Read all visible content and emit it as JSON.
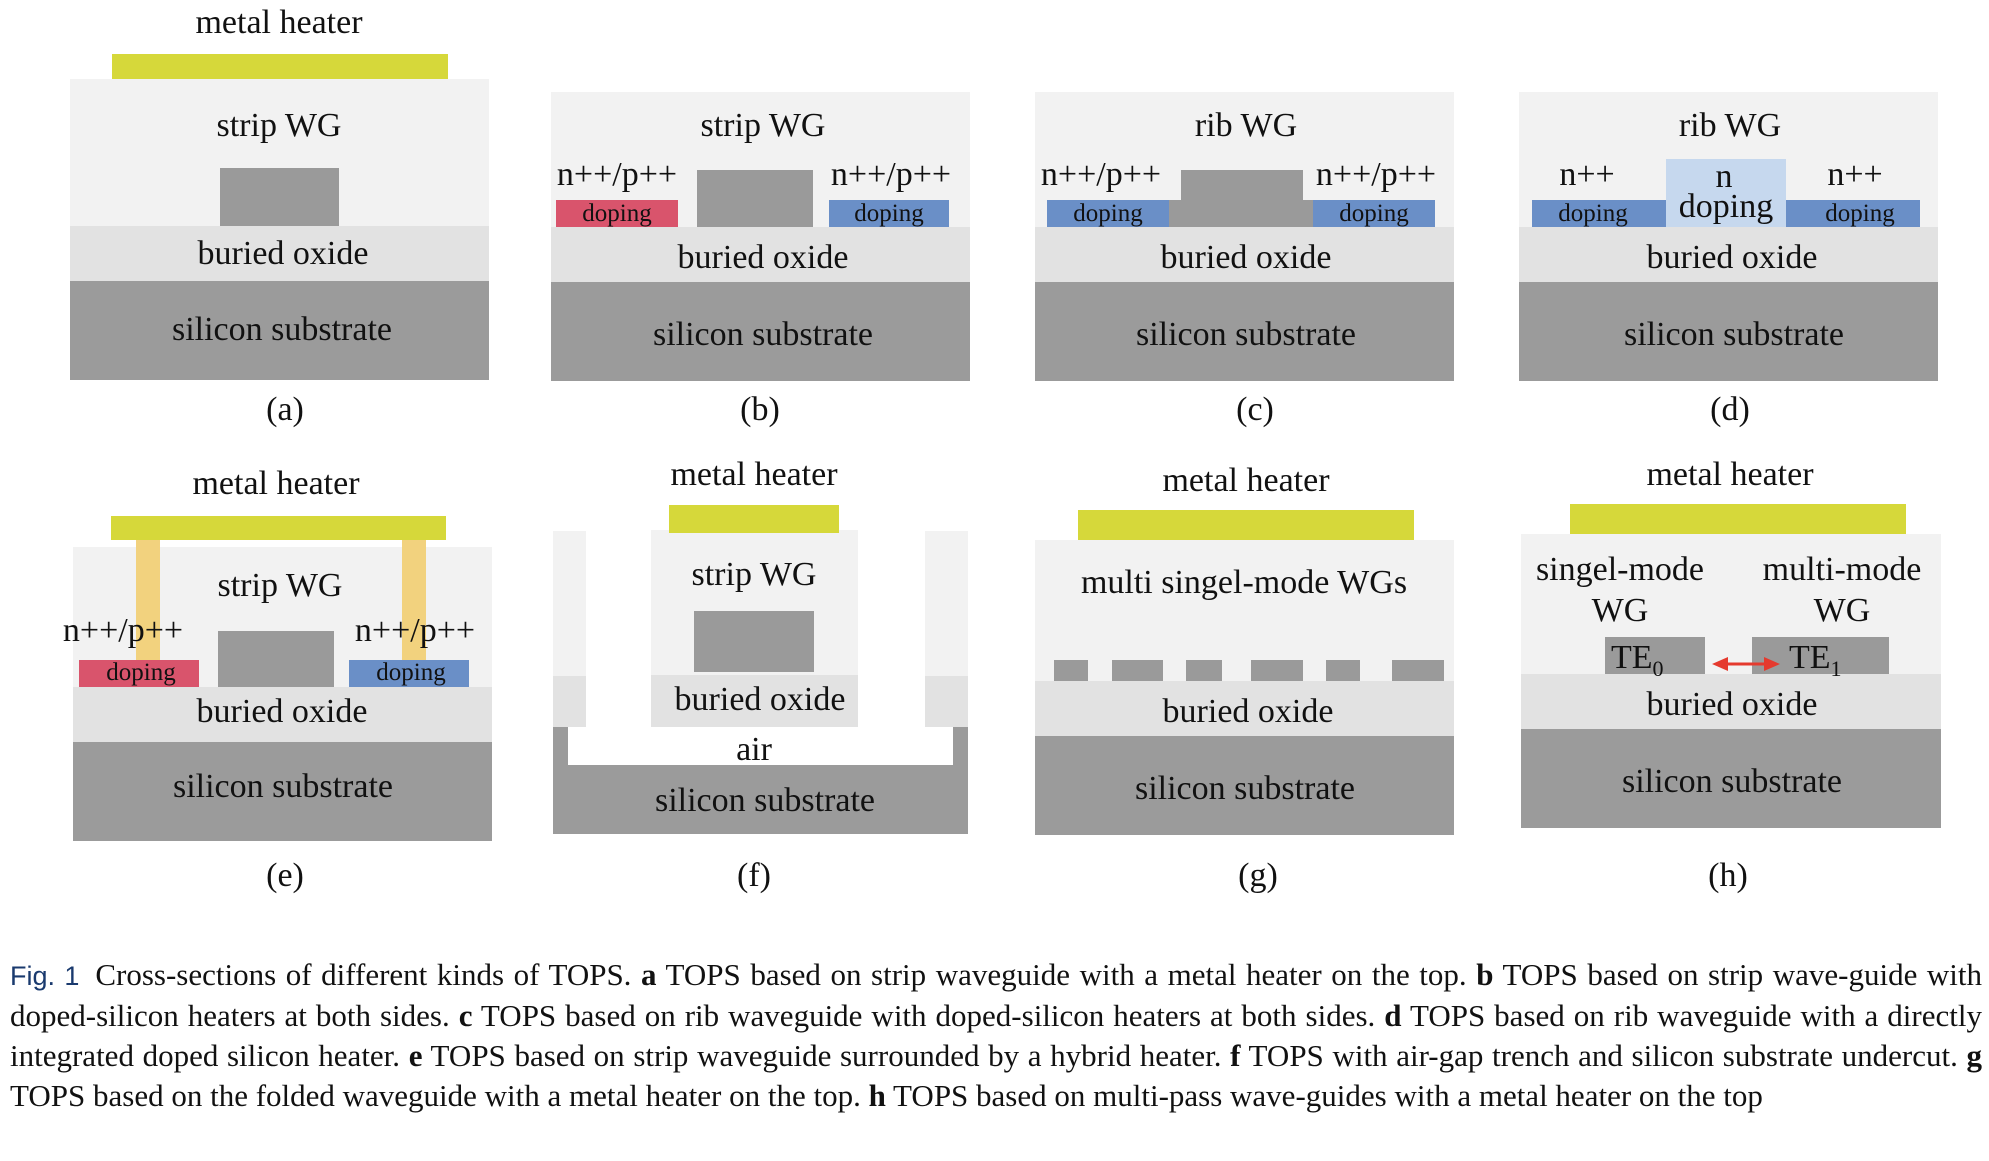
{
  "colors": {
    "heater": "#d6d83a",
    "cladding": "#f2f2f2",
    "oxide": "#e2e2e2",
    "substrate": "#9b9b9b",
    "core": "#9a9a9a",
    "n_doping": "#6a8fc7",
    "p_doping": "#d9546c",
    "n_light": "#c6d8ee",
    "via": "#f2d27e",
    "arrow": "#e53a2e"
  },
  "labels": {
    "metal_heater": "metal heater",
    "strip_wg": "strip WG",
    "rib_wg": "rib WG",
    "buried_oxide": "buried oxide",
    "silicon_substrate": "silicon substrate",
    "npp": "n++/p++",
    "nn": "n++",
    "n": "n",
    "doping": "doping",
    "air": "air",
    "multi_singel": "multi singel-mode WGs",
    "singel_mode": "singel-mode",
    "multi_mode": "multi-mode",
    "wg": "WG",
    "te_base": "TE",
    "te0_sub": "0",
    "te1_sub": "1"
  },
  "panels": [
    "(a)",
    "(b)",
    "(c)",
    "(d)",
    "(e)",
    "(f)",
    "(g)",
    "(h)"
  ],
  "caption": {
    "fig_label": "Fig. 1",
    "segments": [
      {
        "text": "Cross-sections of different kinds of TOPS. ",
        "bold": false
      },
      {
        "text": "a",
        "bold": true
      },
      {
        "text": " TOPS based on strip waveguide with a metal heater on the top. ",
        "bold": false
      },
      {
        "text": "b",
        "bold": true
      },
      {
        "text": " TOPS based on strip wave-guide with doped-silicon heaters at both sides. ",
        "bold": false
      },
      {
        "text": "c",
        "bold": true
      },
      {
        "text": " TOPS based on rib waveguide with doped-silicon heaters at both sides. ",
        "bold": false
      },
      {
        "text": "d",
        "bold": true
      },
      {
        "text": " TOPS based on rib waveguide with a directly integrated doped silicon heater. ",
        "bold": false
      },
      {
        "text": "e",
        "bold": true
      },
      {
        "text": " TOPS based on strip waveguide surrounded by a hybrid heater. ",
        "bold": false
      },
      {
        "text": "f",
        "bold": true
      },
      {
        "text": " TOPS with air-gap trench and silicon substrate undercut. ",
        "bold": false
      },
      {
        "text": "g",
        "bold": true
      },
      {
        "text": " TOPS based on the folded waveguide with a metal heater on the top. ",
        "bold": false
      },
      {
        "text": "h",
        "bold": true
      },
      {
        "text": " TOPS based on multi-pass wave-guides with a metal heater on the top",
        "bold": false
      }
    ]
  }
}
